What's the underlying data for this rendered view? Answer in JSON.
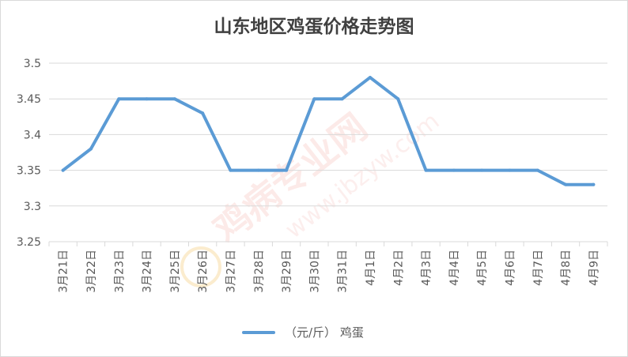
{
  "watermark": {
    "text": "鸡病专业网",
    "url": "www.jbzyw.com"
  },
  "chart_data": {
    "type": "line",
    "title": "山东地区鸡蛋价格走势图",
    "xlabel": "",
    "ylabel": "",
    "ylim": [
      3.25,
      3.5
    ],
    "yticks": [
      "3.25",
      "3.3",
      "3.35",
      "3.4",
      "3.45",
      "3.5"
    ],
    "grid": true,
    "legend_position": "bottom",
    "categories": [
      "3月21日",
      "3月22日",
      "3月23日",
      "3月24日",
      "3月25日",
      "3月26日",
      "3月27日",
      "3月28日",
      "3月29日",
      "3月30日",
      "3月31日",
      "4月1日",
      "4月2日",
      "4月3日",
      "4月4日",
      "4月5日",
      "4月6日",
      "4月7日",
      "4月8日",
      "4月9日"
    ],
    "series": [
      {
        "name": "（元/斤） 鸡蛋",
        "color": "#5b9bd5",
        "values": [
          3.35,
          3.38,
          3.45,
          3.45,
          3.45,
          3.43,
          3.35,
          3.35,
          3.35,
          3.45,
          3.45,
          3.48,
          3.45,
          3.35,
          3.35,
          3.35,
          3.35,
          3.35,
          3.33,
          3.33
        ]
      }
    ]
  }
}
